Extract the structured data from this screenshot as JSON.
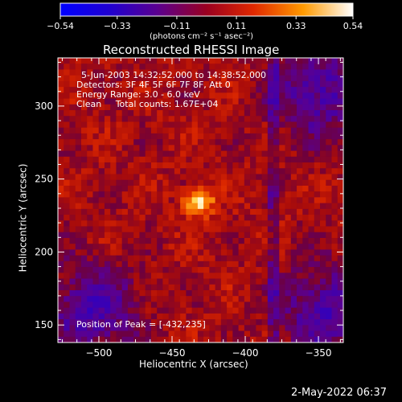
{
  "chart_data": {
    "type": "heatmap",
    "title": "Reconstructed RHESSI Image",
    "xlabel": "Heliocentric X (arcsec)",
    "ylabel": "Heliocentric Y (arcsec)",
    "xlim": [
      -528,
      -333
    ],
    "ylim": [
      138,
      333
    ],
    "x_ticks": [
      -500,
      -450,
      -400,
      -350
    ],
    "y_ticks": [
      150,
      200,
      250,
      300
    ],
    "colorbar": {
      "range": [
        -0.54,
        0.54
      ],
      "ticks": [
        "-0.54",
        "-0.33",
        "-0.11",
        "0.11",
        "0.33",
        "0.54"
      ],
      "unit_label": "(photons cm⁻² s⁻¹ asec⁻²)",
      "colormap": [
        "#0000ff",
        "#4000b0",
        "#600090",
        "#a00010",
        "#e03000",
        "#ff9000",
        "#ffffff"
      ]
    },
    "info": [
      "5-Jun-2003 14:32:52.000 to 14:38:52.000",
      "Detectors: 3F 4F 5F 6F 7F 8F, Att 0",
      "Energy Range: 3.0 - 6.0 keV",
      "Clean     Total counts: 1.67E+04"
    ],
    "peak_label": "Position of Peak = [-432,235]",
    "peak": {
      "x": -432,
      "y": 235,
      "value": 0.54
    },
    "background_level": 0.1,
    "negative_regions": [
      {
        "x": -505,
        "y": 160,
        "note": "lower-left"
      },
      {
        "x": -350,
        "y": 310,
        "note": "upper-right"
      },
      {
        "x": -345,
        "y": 160,
        "note": "lower-right"
      }
    ]
  },
  "footer": {
    "timestamp": "2-May-2022 06:37"
  },
  "colors": {
    "background": "#000000",
    "text": "#ffffff"
  }
}
